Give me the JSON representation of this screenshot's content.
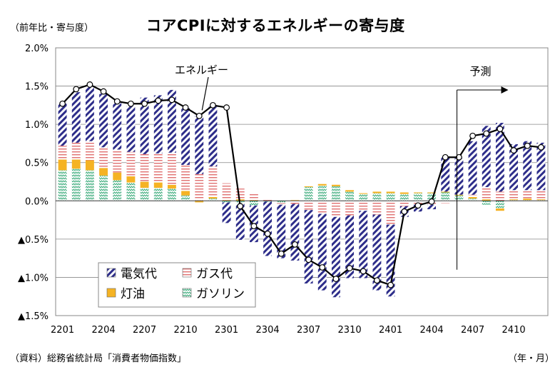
{
  "title": "コアCPIに対するエネルギーの寄与度",
  "unit_label": "（前年比・寄与度）",
  "source": "（資料）総務省統計局「消費者物価指数」",
  "x_unit_label": "（年・月）",
  "chart_data": {
    "type": "bar",
    "stacked": true,
    "title": "コアCPIに対するエネルギーの寄与度",
    "ylabel": "（前年比・寄与度）",
    "xlabel": "（年・月）",
    "ylim": [
      -1.5,
      2.0
    ],
    "yticks": [
      2.0,
      1.5,
      1.0,
      0.5,
      0.0,
      -0.5,
      -1.0,
      -1.5
    ],
    "ytick_labels": [
      "2.0%",
      "1.5%",
      "1.0%",
      "0.5%",
      "0.0%",
      "▲0.5%",
      "▲1.0%",
      "▲1.5%"
    ],
    "grid": true,
    "legend_position": "bottom-left",
    "categories": [
      "2201",
      "2202",
      "2203",
      "2204",
      "2205",
      "2206",
      "2207",
      "2208",
      "2209",
      "2210",
      "2211",
      "2212",
      "2301",
      "2302",
      "2303",
      "2304",
      "2305",
      "2306",
      "2307",
      "2308",
      "2309",
      "2310",
      "2311",
      "2312",
      "2401",
      "2402",
      "2403",
      "2404",
      "2405",
      "2406",
      "2407",
      "2408",
      "2409",
      "2410",
      "2411",
      "2412"
    ],
    "xtick_labels": [
      {
        "index": 0,
        "label": "2201"
      },
      {
        "index": 3,
        "label": "2204"
      },
      {
        "index": 6,
        "label": "2207"
      },
      {
        "index": 9,
        "label": "2210"
      },
      {
        "index": 12,
        "label": "2301"
      },
      {
        "index": 15,
        "label": "2304"
      },
      {
        "index": 18,
        "label": "2307"
      },
      {
        "index": 21,
        "label": "2310"
      },
      {
        "index": 24,
        "label": "2401"
      },
      {
        "index": 27,
        "label": "2404"
      },
      {
        "index": 30,
        "label": "2407"
      },
      {
        "index": 33,
        "label": "2410"
      }
    ],
    "series": [
      {
        "name": "電気代",
        "color": "#2e2e8a",
        "pattern": "diagonal-stripes",
        "values": [
          0.55,
          0.66,
          0.72,
          0.7,
          0.62,
          0.6,
          0.74,
          0.76,
          0.82,
          0.74,
          0.76,
          0.78,
          -0.27,
          -0.48,
          -0.48,
          -0.71,
          -0.7,
          -0.74,
          -0.96,
          -1.0,
          -1.05,
          -0.82,
          -0.88,
          -0.99,
          -0.94,
          -0.14,
          -0.09,
          -0.06,
          0.48,
          0.48,
          0.7,
          0.8,
          0.9,
          0.6,
          0.64,
          0.62
        ]
      },
      {
        "name": "ガス代",
        "color": "#e07070",
        "pattern": "horizontal-lines",
        "values": [
          0.18,
          0.22,
          0.25,
          0.27,
          0.3,
          0.32,
          0.36,
          0.38,
          0.42,
          0.34,
          0.34,
          0.4,
          0.22,
          0.14,
          0.1,
          0.03,
          -0.02,
          -0.04,
          -0.12,
          -0.17,
          -0.21,
          -0.19,
          -0.13,
          -0.18,
          -0.31,
          -0.07,
          -0.05,
          -0.05,
          -0.03,
          0.0,
          0.03,
          0.16,
          0.12,
          0.12,
          0.11,
          0.12
        ]
      },
      {
        "name": "灯油",
        "color": "#f5b324",
        "pattern": "solid",
        "values": [
          0.14,
          0.12,
          0.13,
          0.1,
          0.1,
          0.08,
          0.08,
          0.07,
          0.05,
          0.06,
          -0.02,
          0.02,
          0.01,
          0.02,
          0.01,
          0.0,
          0.0,
          0.01,
          0.01,
          0.02,
          0.02,
          0.02,
          0.01,
          0.02,
          0.02,
          0.02,
          0.01,
          0.01,
          0.01,
          0.01,
          0.02,
          0.02,
          -0.03,
          0.01,
          0.02,
          0.01
        ]
      },
      {
        "name": "ガソリン",
        "color": "#3aaa7a",
        "pattern": "zigzag",
        "values": [
          0.4,
          0.42,
          0.4,
          0.33,
          0.27,
          0.24,
          0.17,
          0.17,
          0.16,
          0.07,
          0.01,
          0.03,
          -0.02,
          -0.03,
          -0.06,
          -0.01,
          -0.03,
          0.0,
          0.18,
          0.2,
          0.19,
          0.12,
          0.09,
          0.1,
          0.1,
          0.09,
          0.1,
          0.1,
          0.11,
          0.07,
          0.03,
          -0.05,
          -0.1,
          0.01,
          0.01,
          0.01
        ]
      }
    ],
    "line": {
      "name": "エネルギー",
      "values": [
        1.27,
        1.46,
        1.52,
        1.43,
        1.3,
        1.27,
        1.27,
        1.31,
        1.32,
        1.22,
        1.11,
        1.25,
        1.22,
        -0.07,
        -0.33,
        -0.43,
        -0.69,
        -0.57,
        -0.77,
        -0.87,
        -1.02,
        -0.88,
        -0.92,
        -1.04,
        -1.1,
        -0.14,
        -0.06,
        -0.01,
        0.57,
        0.57,
        0.85,
        0.88,
        0.94,
        0.66,
        0.72,
        0.7
      ]
    },
    "annotations": [
      {
        "text": "エネルギー",
        "target_index": 10
      },
      {
        "text": "予測",
        "start_index": 29
      }
    ]
  }
}
